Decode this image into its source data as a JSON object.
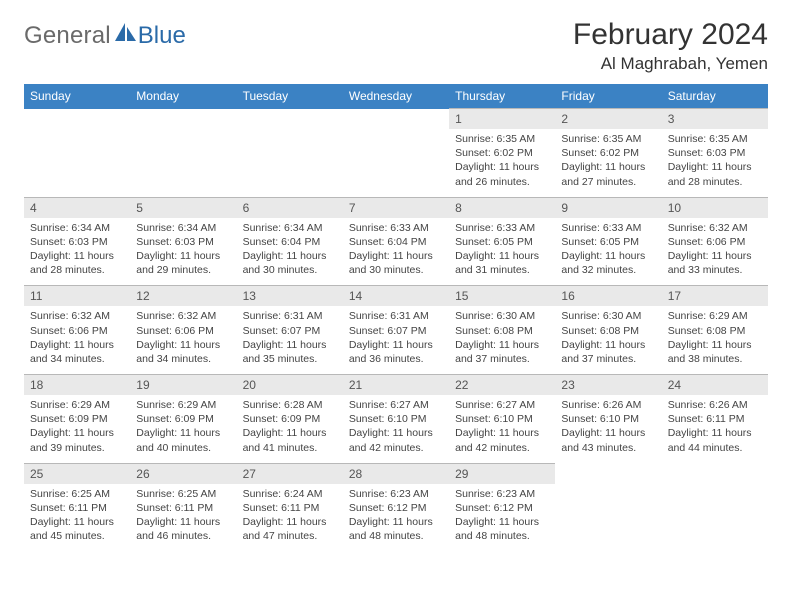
{
  "logo": {
    "text1": "General",
    "text2": "Blue"
  },
  "title": "February 2024",
  "location": "Al Maghrabah, Yemen",
  "colors": {
    "header_bg": "#3b82c4",
    "header_text": "#ffffff",
    "daynum_bg": "#e9e9e9",
    "border": "#b8b8b8",
    "logo_gray": "#6a6a6a",
    "logo_blue": "#2a6aa8"
  },
  "day_headers": [
    "Sunday",
    "Monday",
    "Tuesday",
    "Wednesday",
    "Thursday",
    "Friday",
    "Saturday"
  ],
  "weeks": [
    {
      "nums": [
        "",
        "",
        "",
        "",
        "1",
        "2",
        "3"
      ],
      "cells": [
        null,
        null,
        null,
        null,
        {
          "sunrise": "6:35 AM",
          "sunset": "6:02 PM",
          "daylight": "11 hours and 26 minutes."
        },
        {
          "sunrise": "6:35 AM",
          "sunset": "6:02 PM",
          "daylight": "11 hours and 27 minutes."
        },
        {
          "sunrise": "6:35 AM",
          "sunset": "6:03 PM",
          "daylight": "11 hours and 28 minutes."
        }
      ]
    },
    {
      "nums": [
        "4",
        "5",
        "6",
        "7",
        "8",
        "9",
        "10"
      ],
      "cells": [
        {
          "sunrise": "6:34 AM",
          "sunset": "6:03 PM",
          "daylight": "11 hours and 28 minutes."
        },
        {
          "sunrise": "6:34 AM",
          "sunset": "6:03 PM",
          "daylight": "11 hours and 29 minutes."
        },
        {
          "sunrise": "6:34 AM",
          "sunset": "6:04 PM",
          "daylight": "11 hours and 30 minutes."
        },
        {
          "sunrise": "6:33 AM",
          "sunset": "6:04 PM",
          "daylight": "11 hours and 30 minutes."
        },
        {
          "sunrise": "6:33 AM",
          "sunset": "6:05 PM",
          "daylight": "11 hours and 31 minutes."
        },
        {
          "sunrise": "6:33 AM",
          "sunset": "6:05 PM",
          "daylight": "11 hours and 32 minutes."
        },
        {
          "sunrise": "6:32 AM",
          "sunset": "6:06 PM",
          "daylight": "11 hours and 33 minutes."
        }
      ]
    },
    {
      "nums": [
        "11",
        "12",
        "13",
        "14",
        "15",
        "16",
        "17"
      ],
      "cells": [
        {
          "sunrise": "6:32 AM",
          "sunset": "6:06 PM",
          "daylight": "11 hours and 34 minutes."
        },
        {
          "sunrise": "6:32 AM",
          "sunset": "6:06 PM",
          "daylight": "11 hours and 34 minutes."
        },
        {
          "sunrise": "6:31 AM",
          "sunset": "6:07 PM",
          "daylight": "11 hours and 35 minutes."
        },
        {
          "sunrise": "6:31 AM",
          "sunset": "6:07 PM",
          "daylight": "11 hours and 36 minutes."
        },
        {
          "sunrise": "6:30 AM",
          "sunset": "6:08 PM",
          "daylight": "11 hours and 37 minutes."
        },
        {
          "sunrise": "6:30 AM",
          "sunset": "6:08 PM",
          "daylight": "11 hours and 37 minutes."
        },
        {
          "sunrise": "6:29 AM",
          "sunset": "6:08 PM",
          "daylight": "11 hours and 38 minutes."
        }
      ]
    },
    {
      "nums": [
        "18",
        "19",
        "20",
        "21",
        "22",
        "23",
        "24"
      ],
      "cells": [
        {
          "sunrise": "6:29 AM",
          "sunset": "6:09 PM",
          "daylight": "11 hours and 39 minutes."
        },
        {
          "sunrise": "6:29 AM",
          "sunset": "6:09 PM",
          "daylight": "11 hours and 40 minutes."
        },
        {
          "sunrise": "6:28 AM",
          "sunset": "6:09 PM",
          "daylight": "11 hours and 41 minutes."
        },
        {
          "sunrise": "6:27 AM",
          "sunset": "6:10 PM",
          "daylight": "11 hours and 42 minutes."
        },
        {
          "sunrise": "6:27 AM",
          "sunset": "6:10 PM",
          "daylight": "11 hours and 42 minutes."
        },
        {
          "sunrise": "6:26 AM",
          "sunset": "6:10 PM",
          "daylight": "11 hours and 43 minutes."
        },
        {
          "sunrise": "6:26 AM",
          "sunset": "6:11 PM",
          "daylight": "11 hours and 44 minutes."
        }
      ]
    },
    {
      "nums": [
        "25",
        "26",
        "27",
        "28",
        "29",
        "",
        ""
      ],
      "cells": [
        {
          "sunrise": "6:25 AM",
          "sunset": "6:11 PM",
          "daylight": "11 hours and 45 minutes."
        },
        {
          "sunrise": "6:25 AM",
          "sunset": "6:11 PM",
          "daylight": "11 hours and 46 minutes."
        },
        {
          "sunrise": "6:24 AM",
          "sunset": "6:11 PM",
          "daylight": "11 hours and 47 minutes."
        },
        {
          "sunrise": "6:23 AM",
          "sunset": "6:12 PM",
          "daylight": "11 hours and 48 minutes."
        },
        {
          "sunrise": "6:23 AM",
          "sunset": "6:12 PM",
          "daylight": "11 hours and 48 minutes."
        },
        null,
        null
      ]
    }
  ],
  "labels": {
    "sunrise": "Sunrise: ",
    "sunset": "Sunset: ",
    "daylight": "Daylight: "
  }
}
